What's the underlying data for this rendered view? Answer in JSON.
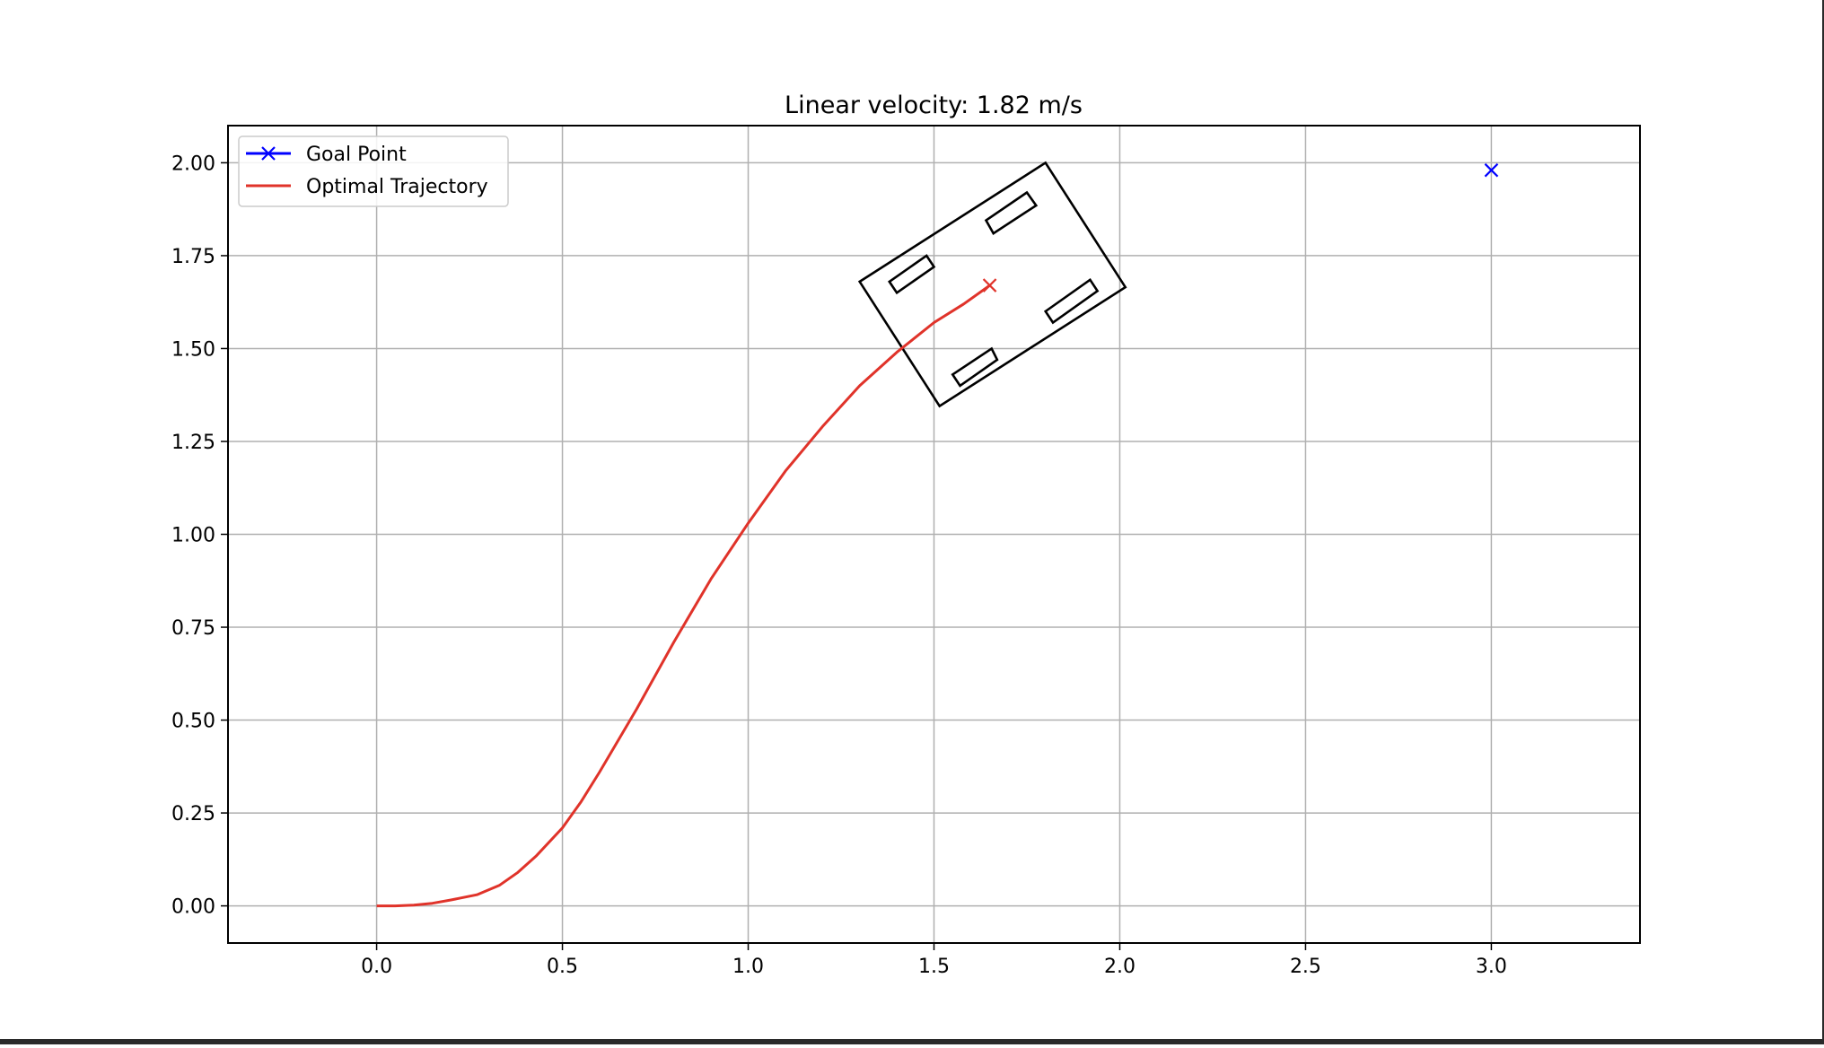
{
  "chart_data": {
    "type": "line",
    "title": "Linear velocity: 1.82 m/s",
    "xlabel": "",
    "ylabel": "",
    "xlim": [
      -0.4,
      3.4
    ],
    "ylim": [
      -0.1,
      2.1
    ],
    "xticks": [
      0.0,
      0.5,
      1.0,
      1.5,
      2.0,
      2.5,
      3.0
    ],
    "xtick_labels": [
      "0.0",
      "0.5",
      "1.0",
      "1.5",
      "2.0",
      "2.5",
      "3.0"
    ],
    "yticks": [
      0.0,
      0.25,
      0.5,
      0.75,
      1.0,
      1.25,
      1.5,
      1.75,
      2.0
    ],
    "ytick_labels": [
      "0.00",
      "0.25",
      "0.50",
      "0.75",
      "1.00",
      "1.25",
      "1.50",
      "1.75",
      "2.00"
    ],
    "grid": true,
    "legend_position": "top-left",
    "series": [
      {
        "name": "Goal Point",
        "color": "#0000ff",
        "marker": "x",
        "points": [
          {
            "x": 3.0,
            "y": 1.98
          }
        ]
      },
      {
        "name": "Optimal Trajectory",
        "color": "#e0332a",
        "end_marker": "x",
        "points": [
          {
            "x": 0.0,
            "y": 0.0
          },
          {
            "x": 0.05,
            "y": 0.0
          },
          {
            "x": 0.1,
            "y": 0.002
          },
          {
            "x": 0.15,
            "y": 0.007
          },
          {
            "x": 0.2,
            "y": 0.016
          },
          {
            "x": 0.27,
            "y": 0.03
          },
          {
            "x": 0.33,
            "y": 0.055
          },
          {
            "x": 0.38,
            "y": 0.09
          },
          {
            "x": 0.43,
            "y": 0.135
          },
          {
            "x": 0.5,
            "y": 0.21
          },
          {
            "x": 0.55,
            "y": 0.28
          },
          {
            "x": 0.6,
            "y": 0.36
          },
          {
            "x": 0.7,
            "y": 0.53
          },
          {
            "x": 0.8,
            "y": 0.71
          },
          {
            "x": 0.9,
            "y": 0.88
          },
          {
            "x": 1.0,
            "y": 1.03
          },
          {
            "x": 1.1,
            "y": 1.17
          },
          {
            "x": 1.2,
            "y": 1.29
          },
          {
            "x": 1.3,
            "y": 1.4
          },
          {
            "x": 1.4,
            "y": 1.49
          },
          {
            "x": 1.5,
            "y": 1.57
          },
          {
            "x": 1.58,
            "y": 1.62
          },
          {
            "x": 1.65,
            "y": 1.67
          }
        ]
      }
    ],
    "vehicle": {
      "body": [
        {
          "x": 1.3,
          "y": 1.68
        },
        {
          "x": 1.8,
          "y": 2.0
        },
        {
          "x": 2.015,
          "y": 1.665
        },
        {
          "x": 1.515,
          "y": 1.345
        }
      ],
      "wheels": [
        [
          {
            "x": 1.64,
            "y": 1.845
          },
          {
            "x": 1.75,
            "y": 1.92
          },
          {
            "x": 1.775,
            "y": 1.885
          },
          {
            "x": 1.66,
            "y": 1.81
          }
        ],
        [
          {
            "x": 1.38,
            "y": 1.68
          },
          {
            "x": 1.48,
            "y": 1.75
          },
          {
            "x": 1.5,
            "y": 1.72
          },
          {
            "x": 1.4,
            "y": 1.65
          }
        ],
        [
          {
            "x": 1.8,
            "y": 1.6
          },
          {
            "x": 1.92,
            "y": 1.685
          },
          {
            "x": 1.94,
            "y": 1.655
          },
          {
            "x": 1.82,
            "y": 1.57
          }
        ],
        [
          {
            "x": 1.55,
            "y": 1.43
          },
          {
            "x": 1.655,
            "y": 1.5
          },
          {
            "x": 1.67,
            "y": 1.47
          },
          {
            "x": 1.57,
            "y": 1.4
          }
        ]
      ],
      "color": "#000000"
    }
  }
}
